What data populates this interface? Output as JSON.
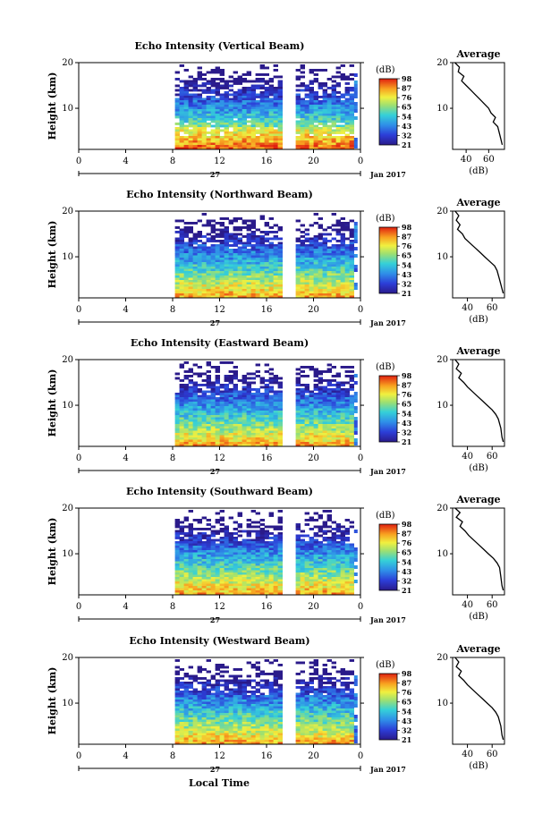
{
  "figure": {
    "date_label": "Jan 2017",
    "day_label": "27",
    "xlabel": "Local Time",
    "colorbar_unit": "(dB)",
    "avg_title": "Average",
    "avg_xlabel": "(dB)",
    "ylabel": "Height (km)"
  },
  "chart_data": [
    {
      "type": "heatmap",
      "title": "Echo Intensity (Vertical Beam)",
      "x_ticks": [
        "0",
        "4",
        "8",
        "12",
        "16",
        "20",
        "0"
      ],
      "xlim": [
        0,
        24
      ],
      "y_ticks": [
        "10",
        "20"
      ],
      "ylim": [
        1,
        20
      ],
      "data_start_hour": 8.2,
      "data_end_hour": 23.6,
      "gap_hours": [
        17.5,
        18.2
      ],
      "colorbar_ticks": [
        "21",
        "32",
        "43",
        "54",
        "65",
        "76",
        "87",
        "98"
      ],
      "colorbar_range": [
        21,
        98
      ],
      "average": {
        "xticks": [
          "40",
          "60"
        ],
        "xlim": [
          28,
          74
        ],
        "x": [
          30,
          34,
          33,
          38,
          36,
          40,
          44,
          48,
          52,
          56,
          60,
          62,
          66,
          64,
          68,
          70,
          72
        ],
        "height": [
          20,
          19,
          18,
          17,
          16,
          15,
          14,
          13,
          12,
          11,
          10,
          9,
          8,
          7,
          6,
          4,
          2
        ]
      }
    },
    {
      "type": "heatmap",
      "title": "Echo Intensity (Northward Beam)",
      "x_ticks": [
        "0",
        "4",
        "8",
        "12",
        "16",
        "20",
        "0"
      ],
      "xlim": [
        0,
        24
      ],
      "y_ticks": [
        "10",
        "20"
      ],
      "ylim": [
        1,
        20
      ],
      "data_start_hour": 8.2,
      "data_end_hour": 23.6,
      "gap_hours": [
        17.5,
        18.2
      ],
      "colorbar_ticks": [
        "21",
        "32",
        "43",
        "54",
        "65",
        "76",
        "87",
        "98"
      ],
      "colorbar_range": [
        21,
        98
      ],
      "average": {
        "xticks": [
          "40",
          "60"
        ],
        "xlim": [
          28,
          70
        ],
        "x": [
          30,
          33,
          31,
          34,
          32,
          36,
          38,
          42,
          46,
          50,
          54,
          58,
          62,
          64,
          66,
          68,
          69
        ],
        "height": [
          20,
          19,
          18,
          17,
          16,
          15,
          14,
          13,
          12,
          11,
          10,
          9,
          8,
          7,
          5,
          3,
          2
        ]
      }
    },
    {
      "type": "heatmap",
      "title": "Echo Intensity (Eastward Beam)",
      "x_ticks": [
        "0",
        "4",
        "8",
        "12",
        "16",
        "20",
        "0"
      ],
      "xlim": [
        0,
        24
      ],
      "y_ticks": [
        "10",
        "20"
      ],
      "ylim": [
        1,
        20
      ],
      "data_start_hour": 8.2,
      "data_end_hour": 23.6,
      "gap_hours": [
        17.5,
        18.2
      ],
      "colorbar_ticks": [
        "21",
        "32",
        "43",
        "54",
        "65",
        "76",
        "87",
        "98"
      ],
      "colorbar_range": [
        21,
        98
      ],
      "average": {
        "xticks": [
          "40",
          "60"
        ],
        "xlim": [
          28,
          70
        ],
        "x": [
          30,
          33,
          31,
          35,
          33,
          37,
          40,
          44,
          48,
          52,
          56,
          60,
          63,
          65,
          67,
          68,
          69
        ],
        "height": [
          20,
          19,
          18,
          17,
          16,
          15,
          14,
          13,
          12,
          11,
          10,
          9,
          8,
          7,
          5,
          3,
          2
        ]
      }
    },
    {
      "type": "heatmap",
      "title": "Echo Intensity (Southward Beam)",
      "x_ticks": [
        "0",
        "4",
        "8",
        "12",
        "16",
        "20",
        "0"
      ],
      "xlim": [
        0,
        24
      ],
      "y_ticks": [
        "10",
        "20"
      ],
      "ylim": [
        1,
        20
      ],
      "data_start_hour": 8.2,
      "data_end_hour": 23.6,
      "gap_hours": [
        17.5,
        18.2
      ],
      "colorbar_ticks": [
        "21",
        "32",
        "43",
        "54",
        "65",
        "76",
        "87",
        "98"
      ],
      "colorbar_range": [
        21,
        98
      ],
      "average": {
        "xticks": [
          "40",
          "60"
        ],
        "xlim": [
          28,
          70
        ],
        "x": [
          30,
          34,
          31,
          36,
          34,
          38,
          41,
          45,
          49,
          53,
          57,
          61,
          64,
          66,
          67,
          68,
          69
        ],
        "height": [
          20,
          19,
          18,
          17,
          16,
          15,
          14,
          13,
          12,
          11,
          10,
          9,
          8,
          7,
          5,
          3,
          2
        ]
      }
    },
    {
      "type": "heatmap",
      "title": "Echo Intensity (Westward Beam)",
      "x_ticks": [
        "0",
        "4",
        "8",
        "12",
        "16",
        "20",
        "0"
      ],
      "xlim": [
        0,
        24
      ],
      "y_ticks": [
        "10",
        "20"
      ],
      "ylim": [
        1,
        20
      ],
      "data_start_hour": 8.2,
      "data_end_hour": 23.6,
      "gap_hours": [
        17.5,
        18.2
      ],
      "colorbar_ticks": [
        "21",
        "32",
        "43",
        "54",
        "65",
        "76",
        "87",
        "98"
      ],
      "colorbar_range": [
        21,
        98
      ],
      "average": {
        "xticks": [
          "40",
          "60"
        ],
        "xlim": [
          28,
          70
        ],
        "x": [
          30,
          33,
          31,
          35,
          33,
          37,
          40,
          44,
          48,
          52,
          56,
          60,
          63,
          65,
          67,
          68,
          69
        ],
        "height": [
          20,
          19,
          18,
          17,
          16,
          15,
          14,
          13,
          12,
          11,
          10,
          9,
          8,
          7,
          5,
          3,
          2
        ]
      }
    }
  ]
}
